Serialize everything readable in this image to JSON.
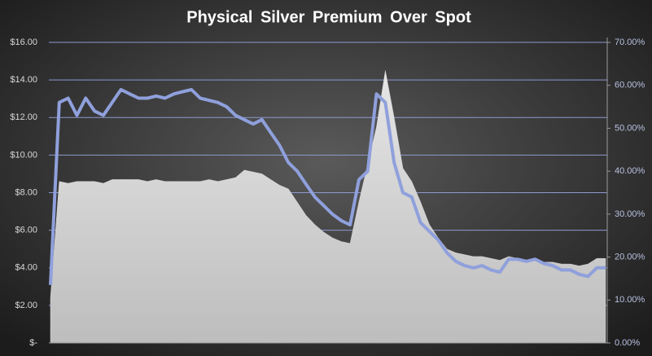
{
  "chart_data": {
    "type": "area-line",
    "title": "Physical Silver Premium Over Spot",
    "grid": true,
    "grid_color": "#8d9ad0",
    "ylim": [
      0,
      16
    ],
    "yticks": [
      {
        "value": 0,
        "label": "$-"
      },
      {
        "value": 2,
        "label": "$2.00"
      },
      {
        "value": 4,
        "label": "$4.00"
      },
      {
        "value": 6,
        "label": "$6.00"
      },
      {
        "value": 8,
        "label": "$8.00"
      },
      {
        "value": 10,
        "label": "$10.00"
      },
      {
        "value": 12,
        "label": "$12.00"
      },
      {
        "value": 14,
        "label": "$14.00"
      },
      {
        "value": 16,
        "label": "$16.00"
      }
    ],
    "y2lim": [
      0,
      70
    ],
    "y2ticks": [
      {
        "value": 0,
        "label": "0.00%"
      },
      {
        "value": 10,
        "label": "10.00%"
      },
      {
        "value": 20,
        "label": "20.00%"
      },
      {
        "value": 30,
        "label": "30.00%"
      },
      {
        "value": 40,
        "label": "40.00%"
      },
      {
        "value": 50,
        "label": "50.00%"
      },
      {
        "value": 60,
        "label": "60.00%"
      },
      {
        "value": 70,
        "label": "70.00%"
      }
    ],
    "series": [
      {
        "type": "area",
        "color": "#d4d4d4",
        "values": [
          2.4,
          8.6,
          8.5,
          8.6,
          8.6,
          8.6,
          8.5,
          8.7,
          8.7,
          8.7,
          8.7,
          8.6,
          8.7,
          8.6,
          8.6,
          8.6,
          8.6,
          8.6,
          8.7,
          8.6,
          8.7,
          8.8,
          9.2,
          9.1,
          9.0,
          8.7,
          8.4,
          8.2,
          7.5,
          6.8,
          6.3,
          5.9,
          5.6,
          5.4,
          5.3,
          7.5,
          9.5,
          11.5,
          14.5,
          12,
          9.3,
          8.6,
          7.5,
          6.3,
          5.6,
          5.0,
          4.8,
          4.7,
          4.6,
          4.6,
          4.5,
          4.4,
          4.6,
          4.5,
          4.4,
          4.4,
          4.3,
          4.3,
          4.2,
          4.2,
          4.1,
          4.2,
          4.5,
          4.5
        ]
      },
      {
        "type": "line",
        "axis": "y2",
        "color": "#8fa0dc",
        "values": [
          13.5,
          56,
          57,
          53,
          57,
          54,
          53,
          56,
          59,
          58,
          57,
          57,
          57.5,
          57,
          58,
          58.5,
          59,
          57,
          56.5,
          56,
          55,
          53,
          52,
          51,
          52,
          49,
          46,
          42,
          40,
          37,
          34,
          32,
          30,
          28.5,
          27.5,
          38,
          40,
          58,
          56,
          42,
          35,
          34,
          28,
          26,
          24,
          21,
          19,
          18,
          17.5,
          18,
          17,
          16.5,
          19.5,
          19.5,
          19,
          19.5,
          18.5,
          18,
          17,
          17,
          16,
          15.5,
          17.5,
          17.5
        ]
      }
    ]
  }
}
